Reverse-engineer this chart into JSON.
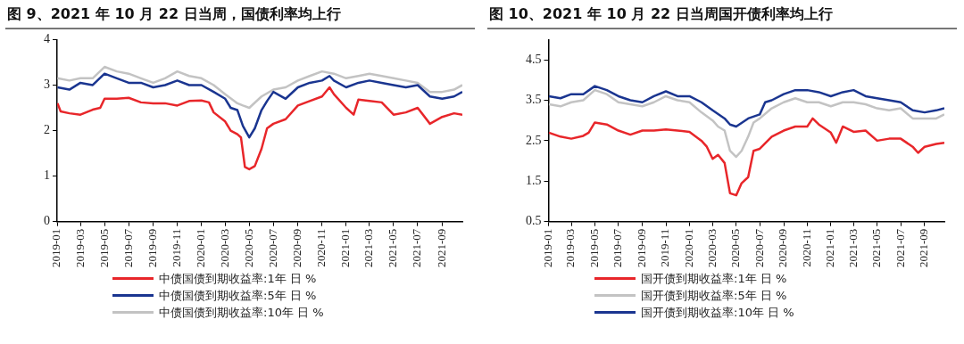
{
  "chart_data": [
    {
      "type": "line",
      "title": "图 9、2021 年 10 月 22 日当周，国债利率均上行",
      "xlim": [
        "2019-01-01",
        "2021-10-22"
      ],
      "xticks": [
        "2019-01",
        "2019-03",
        "2019-05",
        "2019-07",
        "2019-09",
        "2019-11",
        "2020-01",
        "2020-03",
        "2020-05",
        "2020-07",
        "2020-09",
        "2020-11",
        "2021-01",
        "2021-03",
        "2021-05",
        "2021-07",
        "2021-09"
      ],
      "ylim": [
        0,
        4
      ],
      "yticks": [
        0,
        1,
        2,
        3,
        4
      ],
      "legend": "bottom",
      "marker": "none",
      "line_style": "solid",
      "series": [
        {
          "name": "中债国债到期收益率:1年 日 %",
          "color": "#e8262a",
          "x": [
            "2019-01-02",
            "2019-01-10",
            "2019-02-01",
            "2019-03-01",
            "2019-04-01",
            "2019-04-20",
            "2019-05-01",
            "2019-06-01",
            "2019-07-01",
            "2019-08-01",
            "2019-09-01",
            "2019-10-01",
            "2019-11-01",
            "2019-12-01",
            "2020-01-01",
            "2020-01-20",
            "2020-02-01",
            "2020-03-01",
            "2020-03-15",
            "2020-04-01",
            "2020-04-10",
            "2020-04-20",
            "2020-05-01",
            "2020-05-15",
            "2020-06-01",
            "2020-06-15",
            "2020-07-01",
            "2020-08-01",
            "2020-09-01",
            "2020-10-01",
            "2020-11-01",
            "2020-11-20",
            "2020-12-01",
            "2021-01-01",
            "2021-01-20",
            "2021-02-01",
            "2021-03-01",
            "2021-04-01",
            "2021-05-01",
            "2021-06-01",
            "2021-07-01",
            "2021-08-01",
            "2021-09-01",
            "2021-10-01",
            "2021-10-22"
          ],
          "values": [
            2.6,
            2.42,
            2.38,
            2.35,
            2.46,
            2.5,
            2.7,
            2.7,
            2.72,
            2.62,
            2.6,
            2.6,
            2.55,
            2.65,
            2.66,
            2.62,
            2.4,
            2.2,
            2.0,
            1.92,
            1.85,
            1.2,
            1.15,
            1.22,
            1.6,
            2.05,
            2.15,
            2.25,
            2.55,
            2.65,
            2.75,
            2.95,
            2.8,
            2.5,
            2.35,
            2.68,
            2.65,
            2.62,
            2.35,
            2.4,
            2.5,
            2.15,
            2.3,
            2.38,
            2.35
          ]
        },
        {
          "name": "中债国债到期收益率:5年 日 %",
          "color": "#1a3590",
          "x": [
            "2019-01-02",
            "2019-02-01",
            "2019-03-01",
            "2019-04-01",
            "2019-05-01",
            "2019-06-01",
            "2019-07-01",
            "2019-08-01",
            "2019-09-01",
            "2019-10-01",
            "2019-11-01",
            "2019-12-01",
            "2020-01-01",
            "2020-02-01",
            "2020-03-01",
            "2020-03-15",
            "2020-04-01",
            "2020-04-15",
            "2020-05-01",
            "2020-05-15",
            "2020-06-01",
            "2020-06-15",
            "2020-07-01",
            "2020-08-01",
            "2020-09-01",
            "2020-10-01",
            "2020-11-01",
            "2020-11-20",
            "2020-12-01",
            "2021-01-01",
            "2021-02-01",
            "2021-03-01",
            "2021-04-01",
            "2021-05-01",
            "2021-06-01",
            "2021-07-01",
            "2021-08-01",
            "2021-09-01",
            "2021-10-01",
            "2021-10-22"
          ],
          "values": [
            2.95,
            2.9,
            3.05,
            3.0,
            3.25,
            3.15,
            3.05,
            3.05,
            2.95,
            3.0,
            3.1,
            3.0,
            3.0,
            2.85,
            2.7,
            2.5,
            2.45,
            2.1,
            1.85,
            2.05,
            2.45,
            2.65,
            2.85,
            2.7,
            2.95,
            3.05,
            3.1,
            3.2,
            3.1,
            2.95,
            3.05,
            3.1,
            3.05,
            3.0,
            2.95,
            3.0,
            2.75,
            2.7,
            2.75,
            2.85
          ]
        },
        {
          "name": "中债国债到期收益率:10年 日 %",
          "color": "#c3c3c3",
          "x": [
            "2019-01-02",
            "2019-02-01",
            "2019-03-01",
            "2019-04-01",
            "2019-05-01",
            "2019-06-01",
            "2019-07-01",
            "2019-08-01",
            "2019-09-01",
            "2019-10-01",
            "2019-11-01",
            "2019-12-01",
            "2020-01-01",
            "2020-02-01",
            "2020-03-01",
            "2020-04-01",
            "2020-04-15",
            "2020-05-01",
            "2020-06-01",
            "2020-07-01",
            "2020-08-01",
            "2020-09-01",
            "2020-10-01",
            "2020-11-01",
            "2020-12-01",
            "2021-01-01",
            "2021-02-01",
            "2021-03-01",
            "2021-04-01",
            "2021-05-01",
            "2021-06-01",
            "2021-07-01",
            "2021-08-01",
            "2021-09-01",
            "2021-10-01",
            "2021-10-22"
          ],
          "values": [
            3.15,
            3.1,
            3.15,
            3.15,
            3.4,
            3.3,
            3.25,
            3.15,
            3.05,
            3.15,
            3.3,
            3.2,
            3.15,
            3.0,
            2.8,
            2.6,
            2.55,
            2.5,
            2.75,
            2.9,
            2.95,
            3.1,
            3.2,
            3.3,
            3.25,
            3.15,
            3.2,
            3.25,
            3.2,
            3.15,
            3.1,
            3.05,
            2.85,
            2.85,
            2.9,
            3.0
          ]
        }
      ]
    },
    {
      "type": "line",
      "title": "图 10、2021 年 10 月 22 日当周国开债利率均上行",
      "xlim": [
        "2019-01-01",
        "2021-10-22"
      ],
      "xticks": [
        "2019-01",
        "2019-03",
        "2019-05",
        "2019-07",
        "2019-09",
        "2019-11",
        "2020-01",
        "2020-03",
        "2020-05",
        "2020-07",
        "2020-09",
        "2020-11",
        "2021-01",
        "2021-03",
        "2021-05",
        "2021-07",
        "2021-09"
      ],
      "ylim": [
        0.5,
        5
      ],
      "yticks": [
        0.5,
        1.5,
        2.5,
        3.5,
        4.5
      ],
      "legend": "bottom",
      "marker": "none",
      "line_style": "solid",
      "series": [
        {
          "name": "国开债到期收益率:1年 日 %",
          "color": "#e8262a",
          "x": [
            "2019-01-02",
            "2019-02-01",
            "2019-03-01",
            "2019-04-01",
            "2019-04-15",
            "2019-05-01",
            "2019-06-01",
            "2019-07-01",
            "2019-08-01",
            "2019-09-01",
            "2019-10-01",
            "2019-11-01",
            "2019-12-01",
            "2020-01-01",
            "2020-02-01",
            "2020-02-15",
            "2020-03-01",
            "2020-03-15",
            "2020-04-01",
            "2020-04-15",
            "2020-05-01",
            "2020-05-15",
            "2020-06-01",
            "2020-06-15",
            "2020-07-01",
            "2020-08-01",
            "2020-09-01",
            "2020-10-01",
            "2020-11-01",
            "2020-11-15",
            "2020-12-01",
            "2021-01-01",
            "2021-01-15",
            "2021-02-01",
            "2021-03-01",
            "2021-04-01",
            "2021-05-01",
            "2021-06-01",
            "2021-07-01",
            "2021-08-01",
            "2021-08-15",
            "2021-09-01",
            "2021-10-01",
            "2021-10-22"
          ],
          "values": [
            2.7,
            2.6,
            2.55,
            2.62,
            2.7,
            2.95,
            2.9,
            2.75,
            2.65,
            2.75,
            2.75,
            2.78,
            2.75,
            2.72,
            2.5,
            2.35,
            2.05,
            2.15,
            1.95,
            1.2,
            1.15,
            1.45,
            1.6,
            2.25,
            2.3,
            2.6,
            2.75,
            2.85,
            2.85,
            3.05,
            2.9,
            2.7,
            2.45,
            2.85,
            2.72,
            2.75,
            2.5,
            2.55,
            2.55,
            2.35,
            2.2,
            2.35,
            2.42,
            2.45
          ]
        },
        {
          "name": "国开债到期收益率:5年 日 %",
          "color": "#c3c3c3",
          "x": [
            "2019-01-02",
            "2019-02-01",
            "2019-03-01",
            "2019-04-01",
            "2019-05-01",
            "2019-06-01",
            "2019-07-01",
            "2019-08-01",
            "2019-09-01",
            "2019-10-01",
            "2019-11-01",
            "2019-12-01",
            "2020-01-01",
            "2020-02-01",
            "2020-03-01",
            "2020-03-15",
            "2020-04-01",
            "2020-04-15",
            "2020-05-01",
            "2020-05-15",
            "2020-06-01",
            "2020-06-15",
            "2020-07-01",
            "2020-08-01",
            "2020-09-01",
            "2020-10-01",
            "2020-11-01",
            "2020-12-01",
            "2021-01-01",
            "2021-02-01",
            "2021-03-01",
            "2021-04-01",
            "2021-05-01",
            "2021-06-01",
            "2021-07-01",
            "2021-08-01",
            "2021-09-01",
            "2021-10-01",
            "2021-10-22"
          ],
          "values": [
            3.4,
            3.35,
            3.45,
            3.5,
            3.75,
            3.65,
            3.45,
            3.4,
            3.35,
            3.45,
            3.6,
            3.5,
            3.45,
            3.2,
            3.0,
            2.85,
            2.75,
            2.25,
            2.1,
            2.25,
            2.6,
            2.95,
            3.05,
            3.3,
            3.45,
            3.55,
            3.45,
            3.45,
            3.35,
            3.45,
            3.45,
            3.4,
            3.3,
            3.25,
            3.3,
            3.05,
            3.05,
            3.05,
            3.15
          ]
        },
        {
          "name": "国开债到期收益率:10年 日 %",
          "color": "#1a3590",
          "x": [
            "2019-01-02",
            "2019-02-01",
            "2019-03-01",
            "2019-04-01",
            "2019-05-01",
            "2019-06-01",
            "2019-07-01",
            "2019-08-01",
            "2019-09-01",
            "2019-10-01",
            "2019-11-01",
            "2019-12-01",
            "2020-01-01",
            "2020-02-01",
            "2020-03-01",
            "2020-04-01",
            "2020-04-15",
            "2020-05-01",
            "2020-06-01",
            "2020-07-01",
            "2020-07-15",
            "2020-08-01",
            "2020-09-01",
            "2020-10-01",
            "2020-11-01",
            "2020-12-01",
            "2021-01-01",
            "2021-02-01",
            "2021-03-01",
            "2021-04-01",
            "2021-05-01",
            "2021-06-01",
            "2021-07-01",
            "2021-08-01",
            "2021-09-01",
            "2021-10-01",
            "2021-10-22"
          ],
          "values": [
            3.6,
            3.55,
            3.65,
            3.65,
            3.85,
            3.75,
            3.6,
            3.5,
            3.45,
            3.6,
            3.72,
            3.6,
            3.6,
            3.45,
            3.25,
            3.05,
            2.9,
            2.85,
            3.05,
            3.15,
            3.45,
            3.5,
            3.65,
            3.75,
            3.75,
            3.7,
            3.6,
            3.7,
            3.75,
            3.6,
            3.55,
            3.5,
            3.45,
            3.25,
            3.2,
            3.25,
            3.3
          ]
        }
      ]
    }
  ]
}
